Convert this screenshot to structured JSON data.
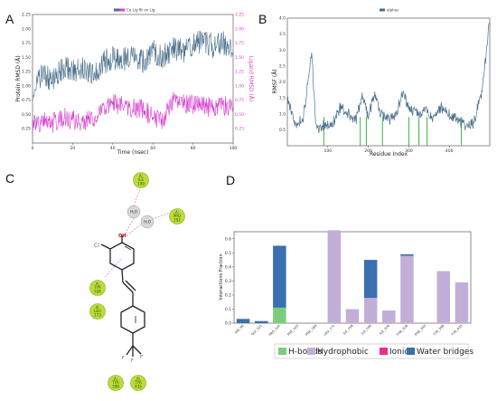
{
  "panels": {
    "A": {
      "letter": "A",
      "chart_data": {
        "type": "line",
        "title": "",
        "xlabel": "Time (nsec)",
        "ylabel_left": "Protein RMSD (Å)",
        "ylabel_right": "Ligand RMSD (Å)",
        "legend": "Cα    Lig fit on Lig",
        "xlim": [
          0,
          100
        ],
        "ylim_left": [
          0.0,
          2.25
        ],
        "ylim_right": [
          0.0,
          2.25
        ],
        "x_ticks": [
          "0",
          "20",
          "40",
          "60",
          "80",
          "100"
        ],
        "y_ticks_left": [
          "0.25",
          "0.50",
          "0.75",
          "1.00",
          "1.25",
          "1.50",
          "1.75",
          "2.00",
          "2.25"
        ],
        "y_ticks_right": [
          "0.25",
          "0.50",
          "0.75",
          "1.00",
          "1.25",
          "1.50",
          "1.75",
          "2.00",
          "2.25"
        ],
        "series": [
          {
            "color": "#4a6f8a",
            "x": [
              0,
              5,
              10,
              15,
              20,
              25,
              30,
              35,
              40,
              45,
              50,
              55,
              60,
              65,
              70,
              75,
              80,
              85,
              90,
              95,
              100
            ],
            "values": [
              0.95,
              1.2,
              1.1,
              1.3,
              1.25,
              1.35,
              1.2,
              1.4,
              1.5,
              1.45,
              1.55,
              1.4,
              1.6,
              1.5,
              1.65,
              1.6,
              1.75,
              1.8,
              1.7,
              1.75,
              1.65
            ]
          },
          {
            "color": "#d63fd0",
            "x": [
              0,
              5,
              10,
              15,
              20,
              25,
              30,
              35,
              40,
              45,
              50,
              55,
              60,
              65,
              70,
              75,
              80,
              85,
              90,
              95,
              100
            ],
            "values": [
              0.3,
              0.4,
              0.35,
              0.45,
              0.4,
              0.38,
              0.42,
              0.6,
              0.7,
              0.65,
              0.62,
              0.6,
              0.45,
              0.4,
              0.72,
              0.7,
              0.68,
              0.65,
              0.62,
              0.66,
              0.64
            ]
          }
        ]
      }
    },
    "B": {
      "letter": "B",
      "chart_data": {
        "type": "line",
        "title": "",
        "xlabel": "Residue Index",
        "ylabel": "RMSF (Å)",
        "legend": "alphas",
        "xlim": [
          0,
          500
        ],
        "ylim": [
          0.0,
          4.0
        ],
        "x_ticks": [
          "100",
          "200",
          "300",
          "400"
        ],
        "y_ticks": [
          "0.5",
          "1.0",
          "1.5",
          "2.0",
          "2.5",
          "3.0",
          "3.5",
          "4.0"
        ],
        "series": [
          {
            "color": "#4a6f8a",
            "x": [
              0,
              20,
              40,
              60,
              70,
              80,
              95,
              110,
              130,
              150,
              170,
              185,
              200,
              215,
              230,
              250,
              270,
              285,
              300,
              320,
              340,
              360,
              380,
              400,
              420,
              440,
              460,
              470,
              480,
              490,
              500
            ],
            "values": [
              1.5,
              0.6,
              0.9,
              2.9,
              0.8,
              0.5,
              0.7,
              0.6,
              1.2,
              1.0,
              0.8,
              1.6,
              0.9,
              1.6,
              1.0,
              0.8,
              1.0,
              1.7,
              1.2,
              1.0,
              1.1,
              0.9,
              1.2,
              1.0,
              0.8,
              0.6,
              0.7,
              1.2,
              1.6,
              2.8,
              4.0
            ]
          }
        ],
        "contact_residues": [
          90,
          180,
          195,
          235,
          300,
          325,
          345,
          430
        ]
      }
    },
    "C": {
      "letter": "C",
      "nodes": [
        {
          "chain": "A:",
          "res": "ILE",
          "num": "199"
        },
        {
          "chain": "A:",
          "res": "PRO",
          "num": "102"
        },
        {
          "chain": "A:",
          "res": "TYR",
          "num": "326"
        },
        {
          "chain": "A:",
          "res": "LEU",
          "num": "173"
        },
        {
          "chain": "A:",
          "res": "TYR",
          "num": "398"
        },
        {
          "chain": "A:",
          "res": "TYR",
          "num": "435"
        }
      ],
      "waters": [
        "H₂O",
        "H₂O"
      ],
      "atom_labels": {
        "oh": "OH",
        "cl": "Cl",
        "f1": "F",
        "f2": "F",
        "f3": "F"
      }
    },
    "D": {
      "letter": "D",
      "chart_data": {
        "type": "bar",
        "title": "",
        "xlabel": "",
        "ylabel": "Interactions Fraction",
        "ylim": [
          0.0,
          0.65
        ],
        "y_ticks": [
          "0.0",
          "0.1",
          "0.2",
          "0.3",
          "0.4",
          "0.5",
          "0.6"
        ],
        "categories": [
          "HIS_90",
          "GLY_101",
          "PRO_102",
          "PHE_103",
          "PHE_168",
          "LEU_171",
          "ILE_198",
          "ILE_199",
          "ILE_316",
          "THR_326",
          "PHE_343",
          "TYR_398",
          "TYR_435"
        ],
        "series": [
          {
            "name": "H-bonds",
            "color": "#7dcc7d",
            "values": [
              0,
              0,
              0.11,
              0,
              0,
              0,
              0,
              0,
              0,
              0,
              0,
              0,
              0
            ]
          },
          {
            "name": "Hydrophobic",
            "color": "#c2afd8",
            "values": [
              0,
              0,
              0,
              0,
              0,
              0.66,
              0.1,
              0.18,
              0.09,
              0.48,
              0,
              0.37,
              0.29
            ]
          },
          {
            "name": "Ionic",
            "color": "#e8308c",
            "values": [
              0,
              0,
              0,
              0,
              0,
              0,
              0,
              0,
              0,
              0,
              0,
              0,
              0
            ]
          },
          {
            "name": "Water bridges",
            "color": "#3a6fb0",
            "values": [
              0.03,
              0.015,
              0.44,
              0,
              0,
              0,
              0,
              0.27,
              0,
              0.01,
              0,
              0,
              0
            ]
          }
        ],
        "legend": [
          "H-bonds",
          "Hydrophobic",
          "Ionic",
          "Water bridges"
        ]
      }
    }
  }
}
